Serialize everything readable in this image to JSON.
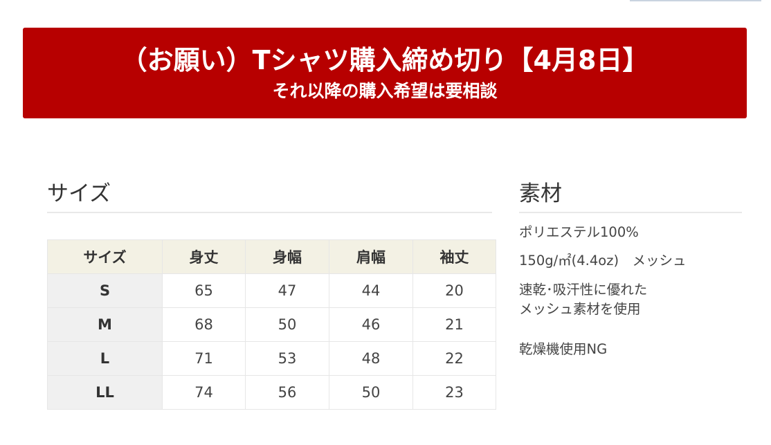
{
  "banner": {
    "title": "（お願い）Tシャツ購入締め切り【4月8日】",
    "subtitle": "それ以降の購入希望は要相談",
    "color": "#b70000"
  },
  "size": {
    "heading": "サイズ",
    "headers": [
      "サイズ",
      "身丈",
      "身幅",
      "肩幅",
      "袖丈"
    ],
    "rows": [
      [
        "S",
        "65",
        "47",
        "44",
        "20"
      ],
      [
        "M",
        "68",
        "50",
        "46",
        "21"
      ],
      [
        "L",
        "71",
        "53",
        "48",
        "22"
      ],
      [
        "LL",
        "74",
        "56",
        "50",
        "23"
      ]
    ]
  },
  "material": {
    "heading": "素材",
    "lines": [
      "ポリエステル100%",
      "150g/㎡(4.4oz)　メッシュ",
      "速乾･吸汗性に優れた",
      "メッシュ素材を使用",
      "乾燥機使用NG"
    ]
  }
}
